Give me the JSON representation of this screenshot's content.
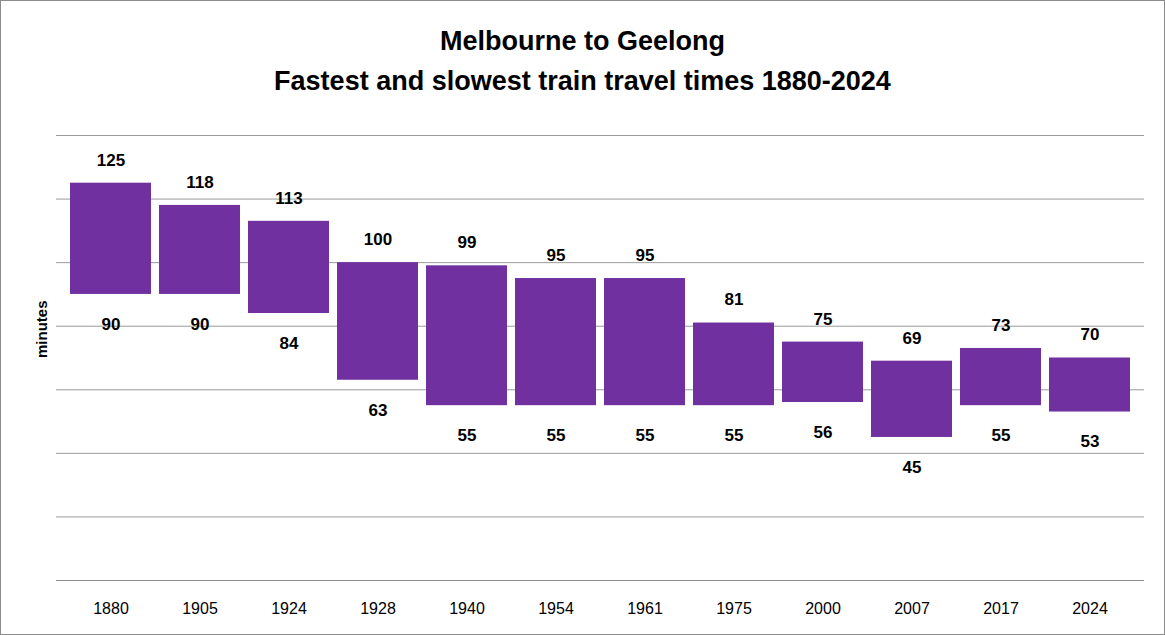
{
  "chart_data": {
    "type": "floating_bar",
    "title": "Melbourne to Geelong",
    "subtitle": "Fastest and slowest train travel times 1880-2024",
    "ylabel": "minutes",
    "categories": [
      "1880",
      "1905",
      "1924",
      "1928",
      "1940",
      "1954",
      "1961",
      "1975",
      "2000",
      "2007",
      "2017",
      "2024"
    ],
    "values": [
      [
        90,
        125
      ],
      [
        90,
        118
      ],
      [
        84,
        113
      ],
      [
        63,
        100
      ],
      [
        55,
        99
      ],
      [
        55,
        95
      ],
      [
        55,
        95
      ],
      [
        55,
        81
      ],
      [
        56,
        75
      ],
      [
        45,
        69
      ],
      [
        55,
        73
      ],
      [
        53,
        70
      ]
    ],
    "color": "#7030a0",
    "ylim": [
      0,
      140
    ],
    "yticks": [
      0,
      20,
      40,
      60,
      80,
      100,
      120,
      140
    ],
    "grid": true,
    "data_labels": true,
    "tick_labels": "x"
  }
}
